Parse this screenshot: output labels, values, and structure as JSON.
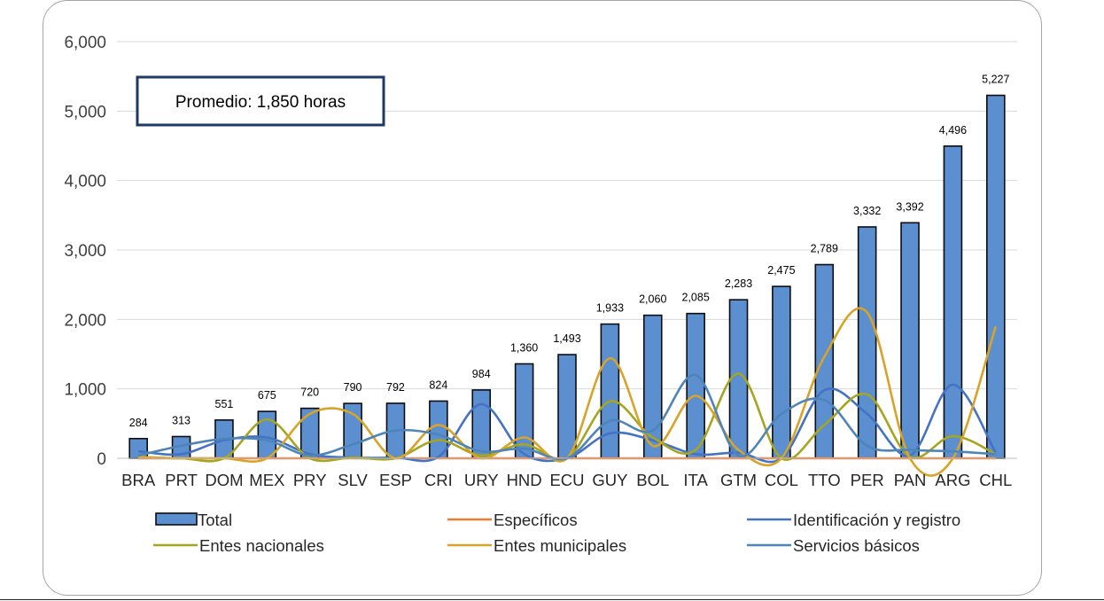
{
  "chart_data": {
    "type": "bar",
    "categories": [
      "BRA",
      "PRT",
      "DOM",
      "MEX",
      "PRY",
      "SLV",
      "ESP",
      "CRI",
      "URY",
      "HND",
      "ECU",
      "GUY",
      "BOL",
      "ITA",
      "GTM",
      "COL",
      "TTO",
      "PER",
      "PAN",
      "ARG",
      "CHL"
    ],
    "y_ticks": [
      "0",
      "1,000",
      "2,000",
      "3,000",
      "4,000",
      "5,000",
      "6,000"
    ],
    "ylim": [
      0,
      6000
    ],
    "grid": true,
    "annotation": "Promedio: 1,850 horas",
    "legend_position": "bottom",
    "series": [
      {
        "name": "Total",
        "kind": "bar",
        "color": "#5b8fd0",
        "values": [
          284,
          313,
          551,
          675,
          720,
          790,
          792,
          824,
          984,
          1360,
          1493,
          1933,
          2060,
          2085,
          2283,
          2475,
          2789,
          3332,
          3392,
          4496,
          5227
        ],
        "labels": [
          "284",
          "313",
          "551",
          "675",
          "720",
          "790",
          "792",
          "824",
          "984",
          "1,360",
          "1,493",
          "1,933",
          "2,060",
          "2,085",
          "2,283",
          "2,475",
          "2,789",
          "3,332",
          "3,392",
          "4,496",
          "5,227"
        ]
      },
      {
        "name": "Específicos",
        "kind": "line",
        "color": "#ed7d31",
        "values": [
          0,
          0,
          0,
          0,
          0,
          0,
          0,
          0,
          0,
          0,
          0,
          0,
          0,
          0,
          0,
          0,
          0,
          0,
          0,
          0,
          0
        ]
      },
      {
        "name": "Identificación y registro",
        "kind": "line",
        "color": "#4472c4",
        "values": [
          100,
          60,
          260,
          300,
          60,
          10,
          10,
          20,
          780,
          60,
          0,
          360,
          260,
          60,
          80,
          0,
          980,
          640,
          40,
          1060,
          80
        ]
      },
      {
        "name": "Entes nacionales",
        "kind": "line",
        "color": "#a5a521",
        "values": [
          20,
          0,
          0,
          560,
          0,
          10,
          0,
          260,
          40,
          200,
          0,
          820,
          300,
          120,
          1220,
          0,
          480,
          920,
          20,
          320,
          60
        ]
      },
      {
        "name": "Entes municipales",
        "kind": "line",
        "color": "#d8a329",
        "values": [
          20,
          0,
          0,
          0,
          640,
          640,
          0,
          480,
          0,
          300,
          0,
          1440,
          180,
          900,
          120,
          0,
          1460,
          2100,
          0,
          0,
          1900
        ]
      },
      {
        "name": "Servicios básicos",
        "kind": "line",
        "color": "#4e85b8",
        "values": [
          40,
          180,
          280,
          260,
          40,
          200,
          400,
          340,
          100,
          140,
          0,
          540,
          400,
          1200,
          40,
          640,
          840,
          180,
          120,
          100,
          60
        ]
      }
    ]
  }
}
